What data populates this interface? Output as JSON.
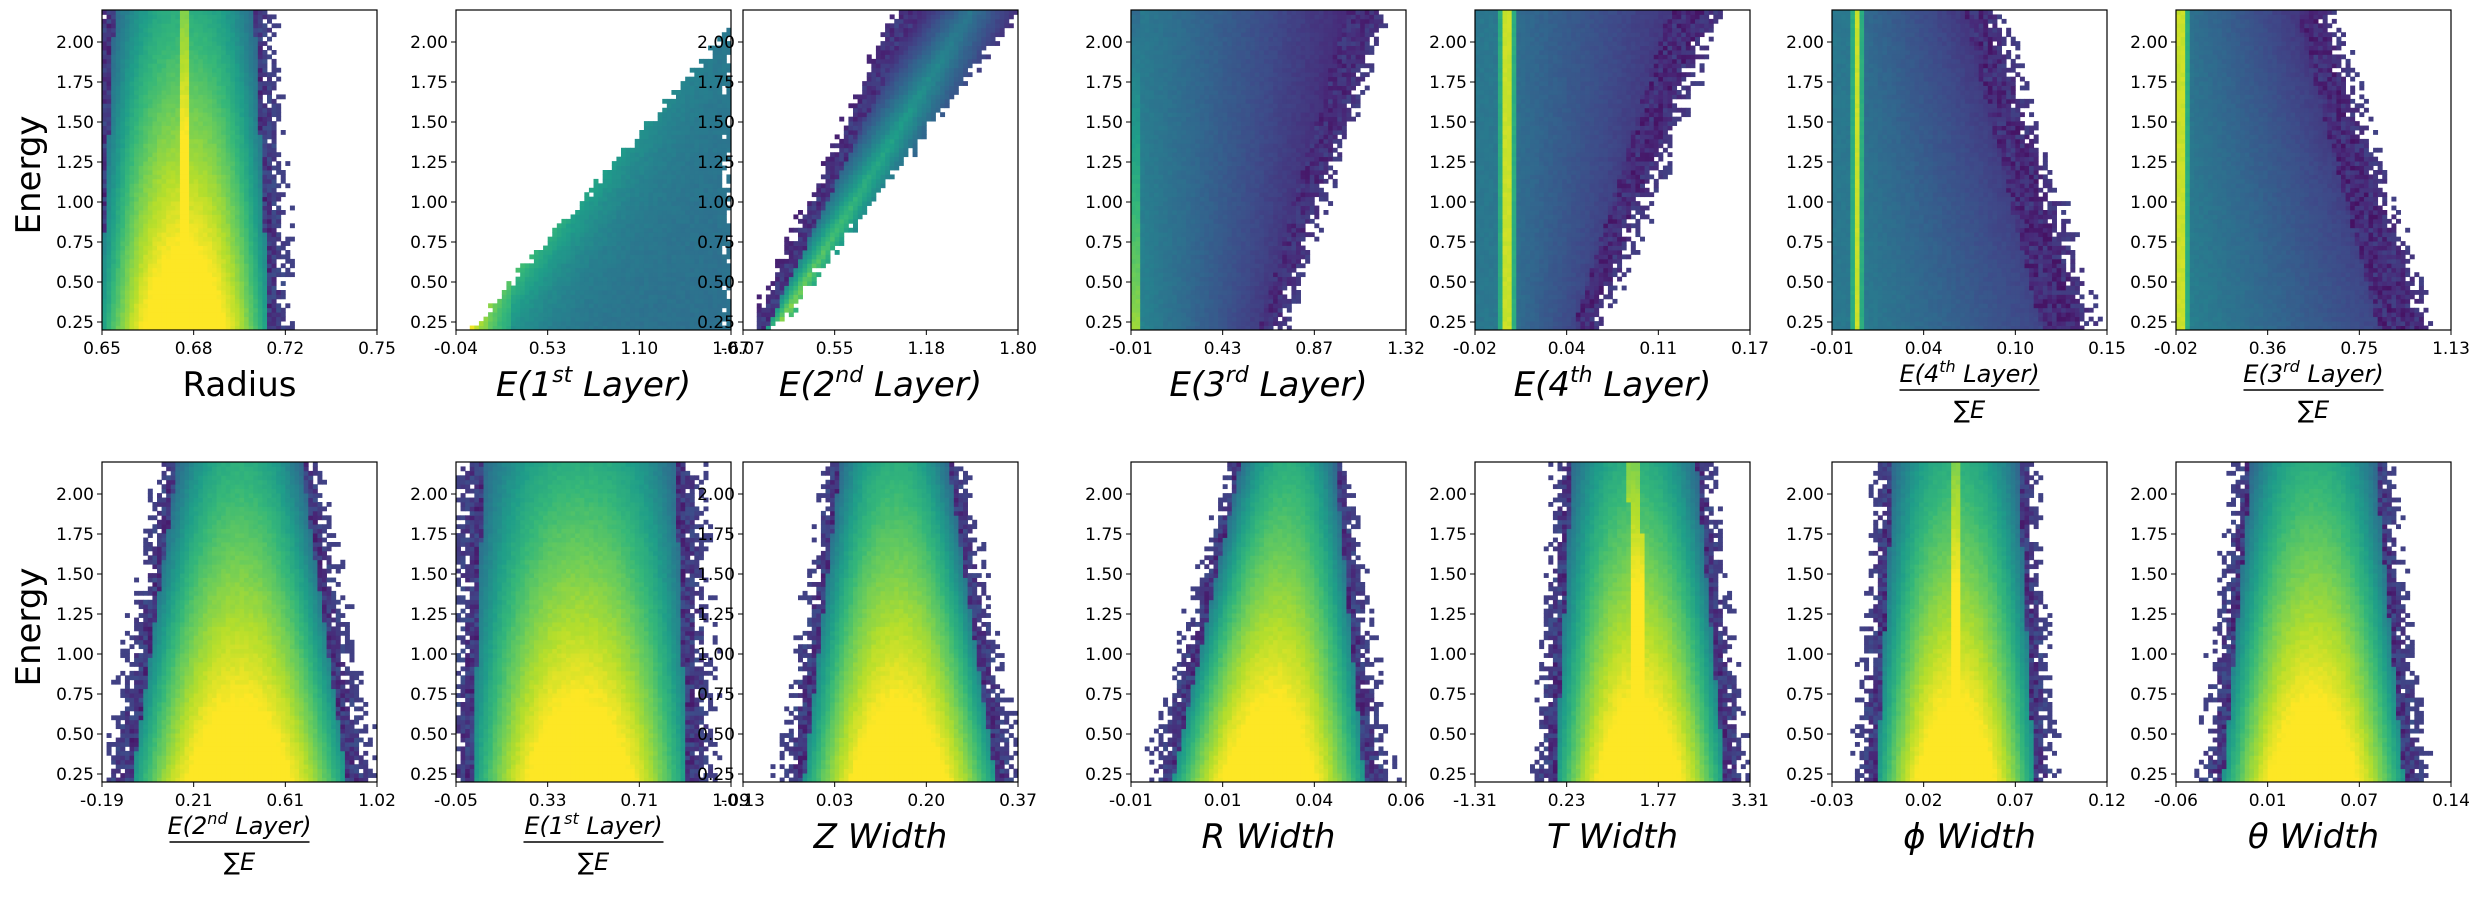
{
  "chart_data": {
    "type": "heatmap",
    "colormap": "viridis",
    "ylabel": "Energy",
    "ylim": [
      0.2,
      2.2
    ],
    "yticks": [
      "0.25",
      "0.50",
      "0.75",
      "1.00",
      "1.25",
      "1.50",
      "1.75",
      "2.00"
    ],
    "panels": [
      {
        "row": 0,
        "col": 0,
        "xlabel": "Radius",
        "label_style": "plain",
        "xticks": [
          "0.65",
          "0.68",
          "0.72",
          "0.75"
        ],
        "shape": "band",
        "params": {
          "c0": 0.3,
          "c1": 0.3,
          "w0": 0.75,
          "w1": 0.62,
          "core": 0.08
        }
      },
      {
        "row": 0,
        "col": 1,
        "xlabel": "E(1st Layer)",
        "label_style": "layer",
        "label_parts": [
          "E(1",
          "st",
          " Layer)"
        ],
        "xticks": [
          "-0.04",
          "0.53",
          "1.10",
          "1.67"
        ],
        "shape": "wedge",
        "params": {
          "left": 0.0,
          "lo_start": 0.06,
          "lo_end": 1.05,
          "peak": 0.05
        }
      },
      {
        "row": 0,
        "col": 2,
        "xlabel": "E(2nd Layer)",
        "label_style": "layer",
        "label_parts": [
          "E(2",
          "nd",
          " Layer)"
        ],
        "xticks": [
          "-0.07",
          "0.55",
          "1.18",
          "1.80"
        ],
        "shape": "diag",
        "params": {
          "lo_start": 0.03,
          "lo_end": 0.55,
          "hi_start": 0.12,
          "hi_end": 1.0
        }
      },
      {
        "row": 0,
        "col": 3,
        "xlabel": "E(3rd Layer)",
        "label_style": "layer",
        "label_parts": [
          "E(3",
          "rd",
          " Layer)"
        ],
        "xticks": [
          "-0.01",
          "0.43",
          "0.87",
          "1.32"
        ],
        "shape": "wedge3",
        "params": {
          "left": 0.0,
          "hi_start": 0.55,
          "hi_end": 0.92
        }
      },
      {
        "row": 0,
        "col": 4,
        "xlabel": "E(4th Layer)",
        "label_style": "layer",
        "label_parts": [
          "E(4",
          "th",
          " Layer)"
        ],
        "xticks": [
          "-0.02",
          "0.04",
          "0.11",
          "0.17"
        ],
        "shape": "spike",
        "params": {
          "spike": 0.12,
          "hi_start": 0.45,
          "hi_end": 0.88
        }
      },
      {
        "row": 0,
        "col": 5,
        "xlabel": "E(4th Layer) / ΣE",
        "label_style": "frac",
        "label_parts": [
          "E(4",
          "th",
          " Layer)"
        ],
        "xticks": [
          "-0.01",
          "0.04",
          "0.10",
          "0.15"
        ],
        "shape": "spike",
        "params": {
          "spike": 0.09,
          "hi_start": 0.95,
          "hi_end": 0.6
        }
      },
      {
        "row": 0,
        "col": 6,
        "xlabel": "E(3rd Layer) / ΣE",
        "label_style": "frac",
        "label_parts": [
          "E(3",
          "rd",
          " Layer)"
        ],
        "xticks": [
          "-0.02",
          "0.36",
          "0.75",
          "1.13"
        ],
        "shape": "spike",
        "params": {
          "spike": 0.02,
          "hi_start": 0.92,
          "hi_end": 0.55
        }
      },
      {
        "row": 1,
        "col": 0,
        "xlabel": "E(2nd Layer) / ΣE",
        "label_style": "frac",
        "label_parts": [
          "E(2",
          "nd",
          " Layer)"
        ],
        "xticks": [
          "-0.19",
          "0.21",
          "0.61",
          "1.02"
        ],
        "shape": "band",
        "params": {
          "c0": 0.5,
          "c1": 0.5,
          "w0": 0.95,
          "w1": 0.55,
          "core": 0.0
        }
      },
      {
        "row": 1,
        "col": 1,
        "xlabel": "E(1st Layer) / ΣE",
        "label_style": "frac",
        "label_parts": [
          "E(1",
          "st",
          " Layer)"
        ],
        "xticks": [
          "-0.05",
          "0.33",
          "0.71",
          "1.09"
        ],
        "shape": "band",
        "params": {
          "c0": 0.45,
          "c1": 0.45,
          "w0": 0.95,
          "w1": 0.85,
          "core": 0.0
        }
      },
      {
        "row": 1,
        "col": 2,
        "xlabel": "Z Width",
        "label_style": "italic",
        "xticks": [
          "-0.13",
          "0.03",
          "0.20",
          "0.37"
        ],
        "shape": "band",
        "params": {
          "c0": 0.57,
          "c1": 0.55,
          "w0": 0.85,
          "w1": 0.48,
          "core": 0.0
        }
      },
      {
        "row": 1,
        "col": 3,
        "xlabel": "R Width",
        "label_style": "italic",
        "xticks": [
          "-0.01",
          "0.01",
          "0.04",
          "0.06"
        ],
        "shape": "band",
        "params": {
          "c0": 0.5,
          "c1": 0.57,
          "w0": 0.85,
          "w1": 0.42,
          "core": 0.0
        }
      },
      {
        "row": 1,
        "col": 4,
        "xlabel": "T Width",
        "label_style": "italic",
        "xticks": [
          "-1.31",
          "0.23",
          "1.77",
          "3.31"
        ],
        "shape": "band",
        "params": {
          "c0": 0.6,
          "c1": 0.58,
          "w0": 0.75,
          "w1": 0.55,
          "core": 0.08
        }
      },
      {
        "row": 1,
        "col": 5,
        "xlabel": "ϕ Width",
        "label_style": "italic",
        "xticks": [
          "-0.03",
          "0.02",
          "0.07",
          "0.12"
        ],
        "shape": "band",
        "params": {
          "c0": 0.45,
          "c1": 0.45,
          "w0": 0.7,
          "w1": 0.55,
          "core": 0.06
        }
      },
      {
        "row": 1,
        "col": 6,
        "xlabel": "θ Width",
        "label_style": "italic",
        "xticks": [
          "-0.06",
          "0.01",
          "0.07",
          "0.14"
        ],
        "shape": "band",
        "params": {
          "c0": 0.5,
          "c1": 0.5,
          "w0": 0.8,
          "w1": 0.55,
          "core": 0.0
        }
      }
    ]
  }
}
